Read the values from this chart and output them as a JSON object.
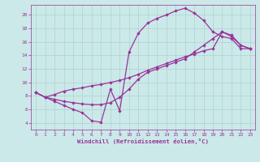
{
  "background_color": "#cbe9e9",
  "line_color": "#993399",
  "grid_color": "#b0d0d0",
  "xlabel": "Windchill (Refroidissement éolien,°C)",
  "xlabel_color": "#993399",
  "tick_color": "#993399",
  "spine_color": "#993399",
  "xlim": [
    -0.5,
    23.5
  ],
  "ylim": [
    3.0,
    21.5
  ],
  "xticks": [
    0,
    1,
    2,
    3,
    4,
    5,
    6,
    7,
    8,
    9,
    10,
    11,
    12,
    13,
    14,
    15,
    16,
    17,
    18,
    19,
    20,
    21,
    22,
    23
  ],
  "yticks": [
    4,
    6,
    8,
    10,
    12,
    14,
    16,
    18,
    20
  ],
  "line1_x": [
    0,
    1,
    2,
    3,
    4,
    5,
    6,
    7,
    8,
    9,
    10,
    11,
    12,
    13,
    14,
    15,
    16,
    17,
    18,
    19,
    20,
    21,
    22,
    23
  ],
  "line1_y": [
    8.5,
    7.8,
    7.2,
    6.6,
    6.0,
    5.5,
    4.3,
    4.1,
    9.0,
    5.8,
    14.5,
    17.3,
    18.8,
    19.5,
    20.0,
    20.6,
    21.0,
    20.3,
    19.2,
    17.5,
    16.8,
    16.5,
    15.0,
    15.0
  ],
  "line2_x": [
    0,
    1,
    2,
    3,
    4,
    5,
    6,
    7,
    8,
    9,
    10,
    11,
    12,
    13,
    14,
    15,
    16,
    17,
    18,
    19,
    20,
    21,
    22,
    23
  ],
  "line2_y": [
    8.5,
    7.8,
    8.2,
    8.7,
    9.0,
    9.2,
    9.5,
    9.7,
    10.0,
    10.3,
    10.7,
    11.2,
    11.8,
    12.3,
    12.8,
    13.3,
    13.8,
    14.2,
    14.7,
    15.0,
    17.5,
    17.0,
    15.5,
    15.0
  ],
  "line3_x": [
    0,
    1,
    2,
    3,
    4,
    5,
    6,
    7,
    8,
    9,
    10,
    11,
    12,
    13,
    14,
    15,
    16,
    17,
    18,
    19,
    20,
    21,
    22,
    23
  ],
  "line3_y": [
    8.5,
    7.8,
    7.5,
    7.2,
    7.0,
    6.8,
    6.7,
    6.7,
    7.0,
    7.8,
    9.0,
    10.5,
    11.5,
    12.0,
    12.5,
    13.0,
    13.5,
    14.5,
    15.5,
    16.5,
    17.5,
    16.8,
    15.5,
    15.0
  ]
}
